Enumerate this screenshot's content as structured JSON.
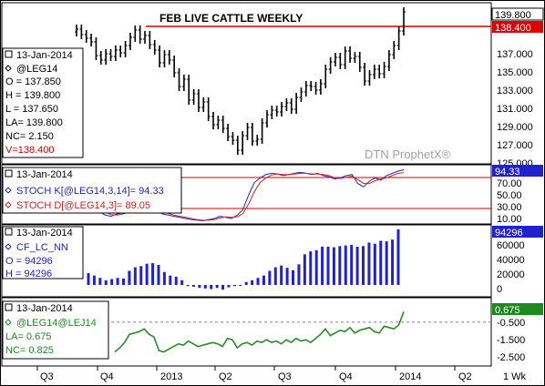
{
  "chart_data": [
    {
      "type": "ohlc",
      "title": "FEB LIVE CATTLE WEEKLY",
      "watermark": "DTN ProphetX®",
      "info": {
        "date": "13-Jan-2014",
        "symbol": "@LEG14",
        "open": "O = 137.850",
        "high": "H = 139.800",
        "low": "L = 137.650",
        "last": "LA= 139.800",
        "net_change": "NC= 2.150",
        "volume": "V=138.400"
      },
      "y_ticks": [
        "137.000",
        "135.000",
        "133.000",
        "131.000",
        "129.000",
        "127.000",
        "125.000"
      ],
      "last_price_label": "139.800",
      "reference_label": "138.400",
      "reference_value": 138.4,
      "ylim": [
        123.9,
        140.0
      ],
      "close": [
        137.9,
        137.3,
        136.9,
        136.5,
        135.0,
        134.5,
        135.2,
        134.9,
        135.6,
        135.3,
        136.1,
        137.0,
        137.8,
        136.8,
        137.2,
        136.2,
        135.6,
        134.2,
        135.1,
        134.5,
        133.1,
        131.6,
        132.4,
        130.1,
        130.8,
        129.3,
        129.9,
        128.3,
        127.4,
        127.9,
        127.0,
        126.1,
        125.7,
        124.6,
        126.2,
        127.1,
        125.6,
        125.8,
        127.6,
        128.5,
        129.0,
        128.8,
        129.4,
        129.8,
        129.1,
        130.4,
        131.0,
        131.7,
        131.6,
        131.2,
        131.9,
        133.5,
        134.3,
        134.8,
        134.0,
        135.5,
        134.7,
        134.9,
        133.7,
        132.2,
        132.9,
        133.5,
        133.0,
        133.8,
        135.1,
        136.1,
        137.7,
        139.8
      ]
    },
    {
      "type": "line",
      "info": {
        "date": "13-Jan-2014",
        "k_label": "STOCH K[@LEG14,3,14]= 94.33",
        "d_label": "STOCH D[@LEG14,3]= 89.05"
      },
      "y_ticks": [
        "70.00",
        "50.00",
        "30.00",
        "10.00"
      ],
      "last_label": "94.33",
      "ylim": [
        0,
        100
      ],
      "levels": [
        80,
        20
      ],
      "series": [
        {
          "color": "#2222cc",
          "values": [
            62,
            55,
            42,
            32,
            20,
            14,
            12,
            16,
            18,
            22,
            28,
            34,
            30,
            26,
            22,
            16,
            14,
            12,
            10,
            8,
            6,
            5,
            4,
            6,
            8,
            12,
            10,
            8,
            14,
            24,
            50,
            72,
            80,
            86,
            88,
            87,
            84,
            86,
            88,
            90,
            88,
            86,
            88,
            84,
            82,
            78,
            80,
            84,
            86,
            70,
            64,
            74,
            80,
            76,
            84,
            88,
            92,
            94.33
          ]
        },
        {
          "color": "#cc2222",
          "values": [
            64,
            58,
            48,
            38,
            28,
            20,
            15,
            14,
            16,
            19,
            24,
            29,
            31,
            29,
            26,
            21,
            17,
            14,
            12,
            10,
            8,
            6,
            5,
            5,
            6,
            9,
            11,
            10,
            11,
            17,
            34,
            56,
            72,
            80,
            85,
            87,
            86,
            86,
            87,
            88,
            88,
            87,
            87,
            86,
            84,
            80,
            79,
            81,
            83,
            77,
            70,
            70,
            75,
            78,
            80,
            84,
            88,
            89.05
          ]
        }
      ]
    },
    {
      "type": "bar",
      "info": {
        "date": "13-Jan-2014",
        "symbol": "CF_LC_NN",
        "open": "O = 94296",
        "high": "H = 94296"
      },
      "y_ticks": [
        "60000",
        "40000",
        "20000",
        "0"
      ],
      "last_label": "94296",
      "ylim": [
        -20000,
        102000
      ],
      "values": [
        20000,
        16000,
        12000,
        8000,
        10000,
        12000,
        11000,
        24000,
        30000,
        32000,
        36000,
        37000,
        34000,
        22000,
        16000,
        14000,
        8000,
        -2000,
        -3000,
        -5000,
        -6000,
        -7000,
        -5000,
        -8000,
        -4000,
        -2000,
        -1000,
        5000,
        8000,
        12000,
        16000,
        24000,
        30000,
        33000,
        29000,
        25000,
        35000,
        52000,
        57000,
        59000,
        65000,
        65000,
        64000,
        66000,
        67000,
        68000,
        65000,
        66000,
        72000,
        70000,
        75000,
        74000,
        77000,
        94296
      ]
    },
    {
      "type": "line",
      "info": {
        "date": "13-Jan-2014",
        "symbol": "@LEG14@LEJ14",
        "last": "LA= 0.675",
        "net_change": "NC= 0.825"
      },
      "y_ticks": [
        "-0.500",
        "-1.500",
        "-2.500"
      ],
      "last_label": "0.675",
      "ylim": [
        -3.0,
        1.1
      ],
      "reference_value": -0.1,
      "series": [
        {
          "color": "#2a8a2a",
          "values": [
            -2.3,
            -2.0,
            -1.6,
            -1.0,
            -0.9,
            -0.8,
            -0.6,
            -1.0,
            -1.2,
            -2.2,
            -2.3,
            -2.1,
            -1.9,
            -1.7,
            -1.8,
            -1.5,
            -1.7,
            -1.9,
            -1.8,
            -1.7,
            -1.6,
            -1.7,
            -1.9,
            -1.3,
            -1.4,
            -2.0,
            -1.7,
            -1.6,
            -1.8,
            -1.5,
            -1.6,
            -1.4,
            -1.6,
            -1.5,
            -1.7,
            -1.4,
            -1.6,
            -1.3,
            -1.5,
            -1.4,
            -1.6,
            -1.3,
            -1.0,
            -0.6,
            -1.1,
            -0.9,
            -0.7,
            -0.8,
            -0.5,
            -0.9,
            -0.7,
            -0.6,
            -0.5,
            -0.8,
            -0.9,
            -0.4,
            -0.5,
            -0.6,
            -0.3,
            0.675
          ]
        }
      ]
    }
  ],
  "x_axis": {
    "labels": [
      "Q3",
      "Q4",
      "2013",
      "Q2",
      "Q3",
      "Q4",
      "2014",
      "Q2"
    ],
    "interval": "1 Wk"
  }
}
